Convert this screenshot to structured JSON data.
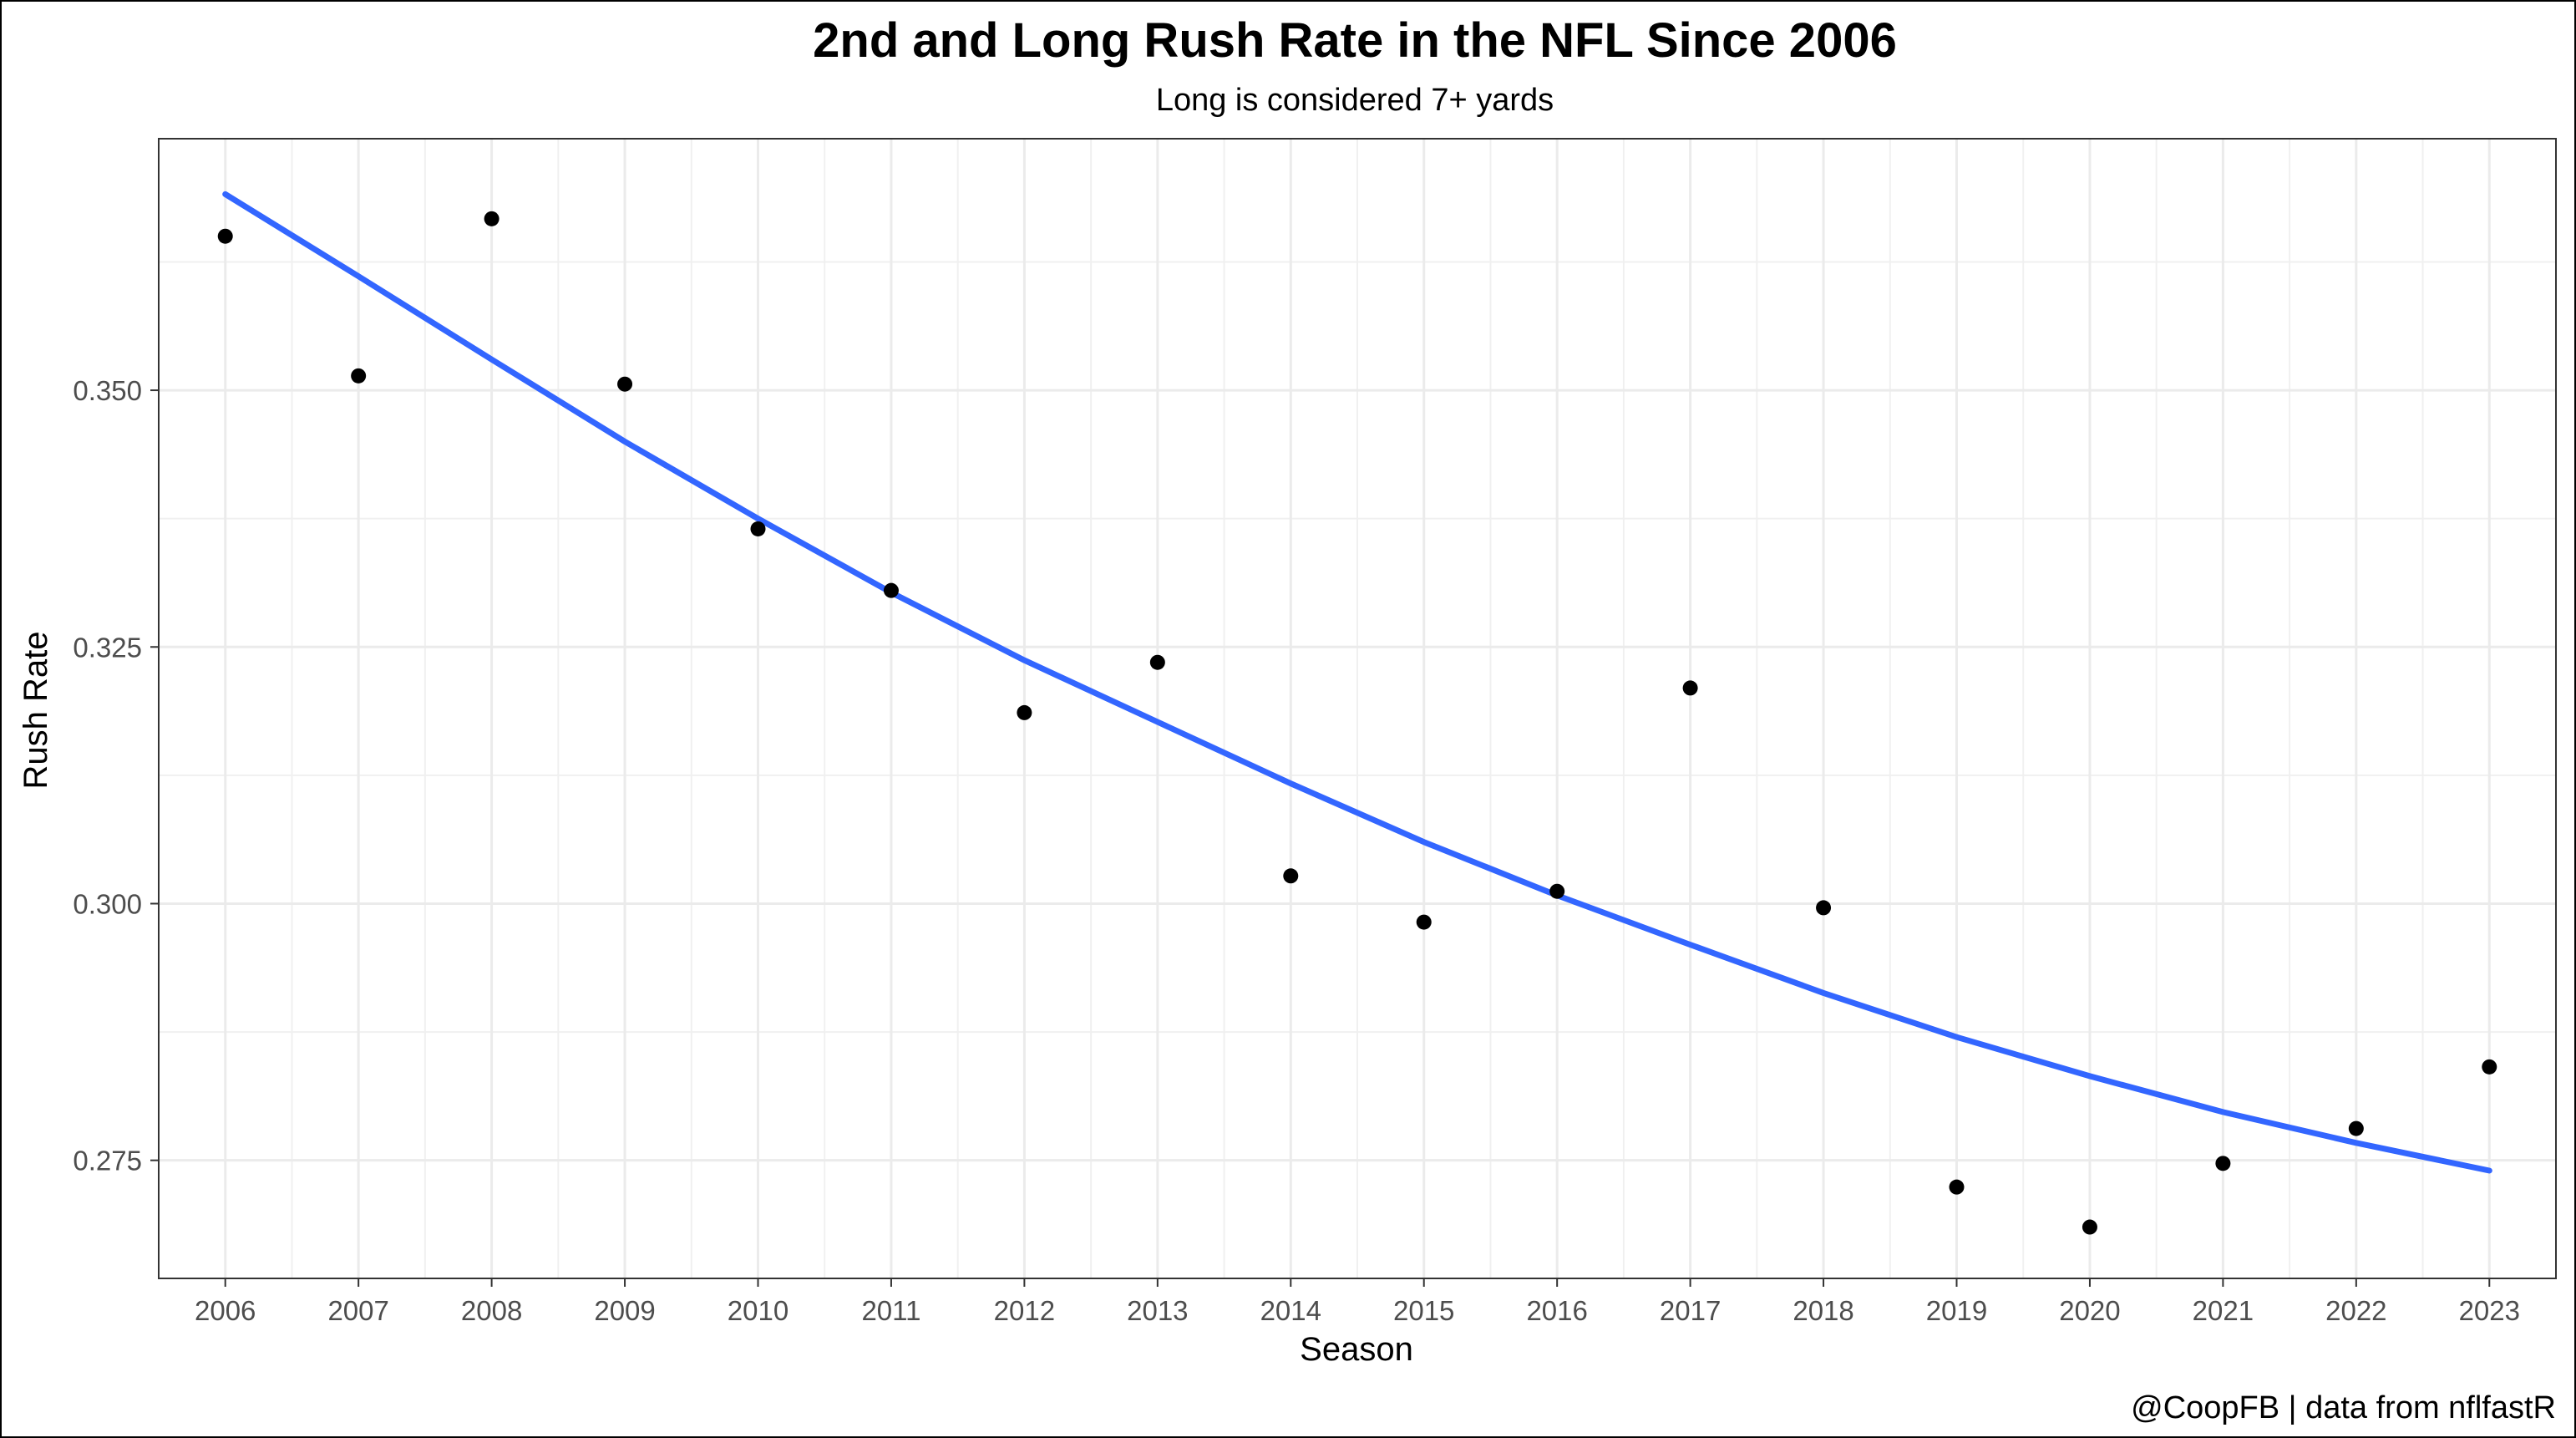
{
  "chart_data": {
    "type": "scatter",
    "title": "2nd and Long Rush Rate in the NFL Since 2006",
    "subtitle": "Long is considered 7+ yards",
    "xlabel": "Season",
    "ylabel": "Rush Rate",
    "caption": "@CoopFB | data from nflfastR",
    "xlim": [
      2005.5,
      2023.5
    ],
    "ylim": [
      0.2635,
      0.3745
    ],
    "x_ticks": [
      "2006",
      "2007",
      "2008",
      "2009",
      "2010",
      "2011",
      "2012",
      "2013",
      "2014",
      "2015",
      "2016",
      "2017",
      "2018",
      "2019",
      "2020",
      "2021",
      "2022",
      "2023"
    ],
    "y_ticks": [
      "0.275",
      "0.300",
      "0.325",
      "0.350"
    ],
    "grid": true,
    "series": [
      {
        "kind": "points",
        "color": "#000000",
        "x": [
          2006,
          2007,
          2008,
          2009,
          2010,
          2011,
          2012,
          2013,
          2014,
          2015,
          2016,
          2017,
          2018,
          2019,
          2020,
          2021,
          2022,
          2023
        ],
        "y": [
          0.365,
          0.3514,
          0.3667,
          0.3506,
          0.3365,
          0.3305,
          0.3186,
          0.3235,
          0.3027,
          0.2982,
          0.3012,
          0.321,
          0.2996,
          0.2724,
          0.2685,
          0.2747,
          0.2781,
          0.2841
        ]
      },
      {
        "kind": "trend-line",
        "color": "#3366FF",
        "x": [
          2006,
          2007,
          2008,
          2009,
          2010,
          2011,
          2012,
          2013,
          2014,
          2015,
          2016,
          2017,
          2018,
          2019,
          2020,
          2021,
          2022,
          2023
        ],
        "y": [
          0.3691,
          0.3611,
          0.353,
          0.345,
          0.3375,
          0.3303,
          0.3237,
          0.3177,
          0.3117,
          0.306,
          0.3008,
          0.296,
          0.2913,
          0.287,
          0.2832,
          0.2797,
          0.2767,
          0.274
        ]
      }
    ]
  }
}
